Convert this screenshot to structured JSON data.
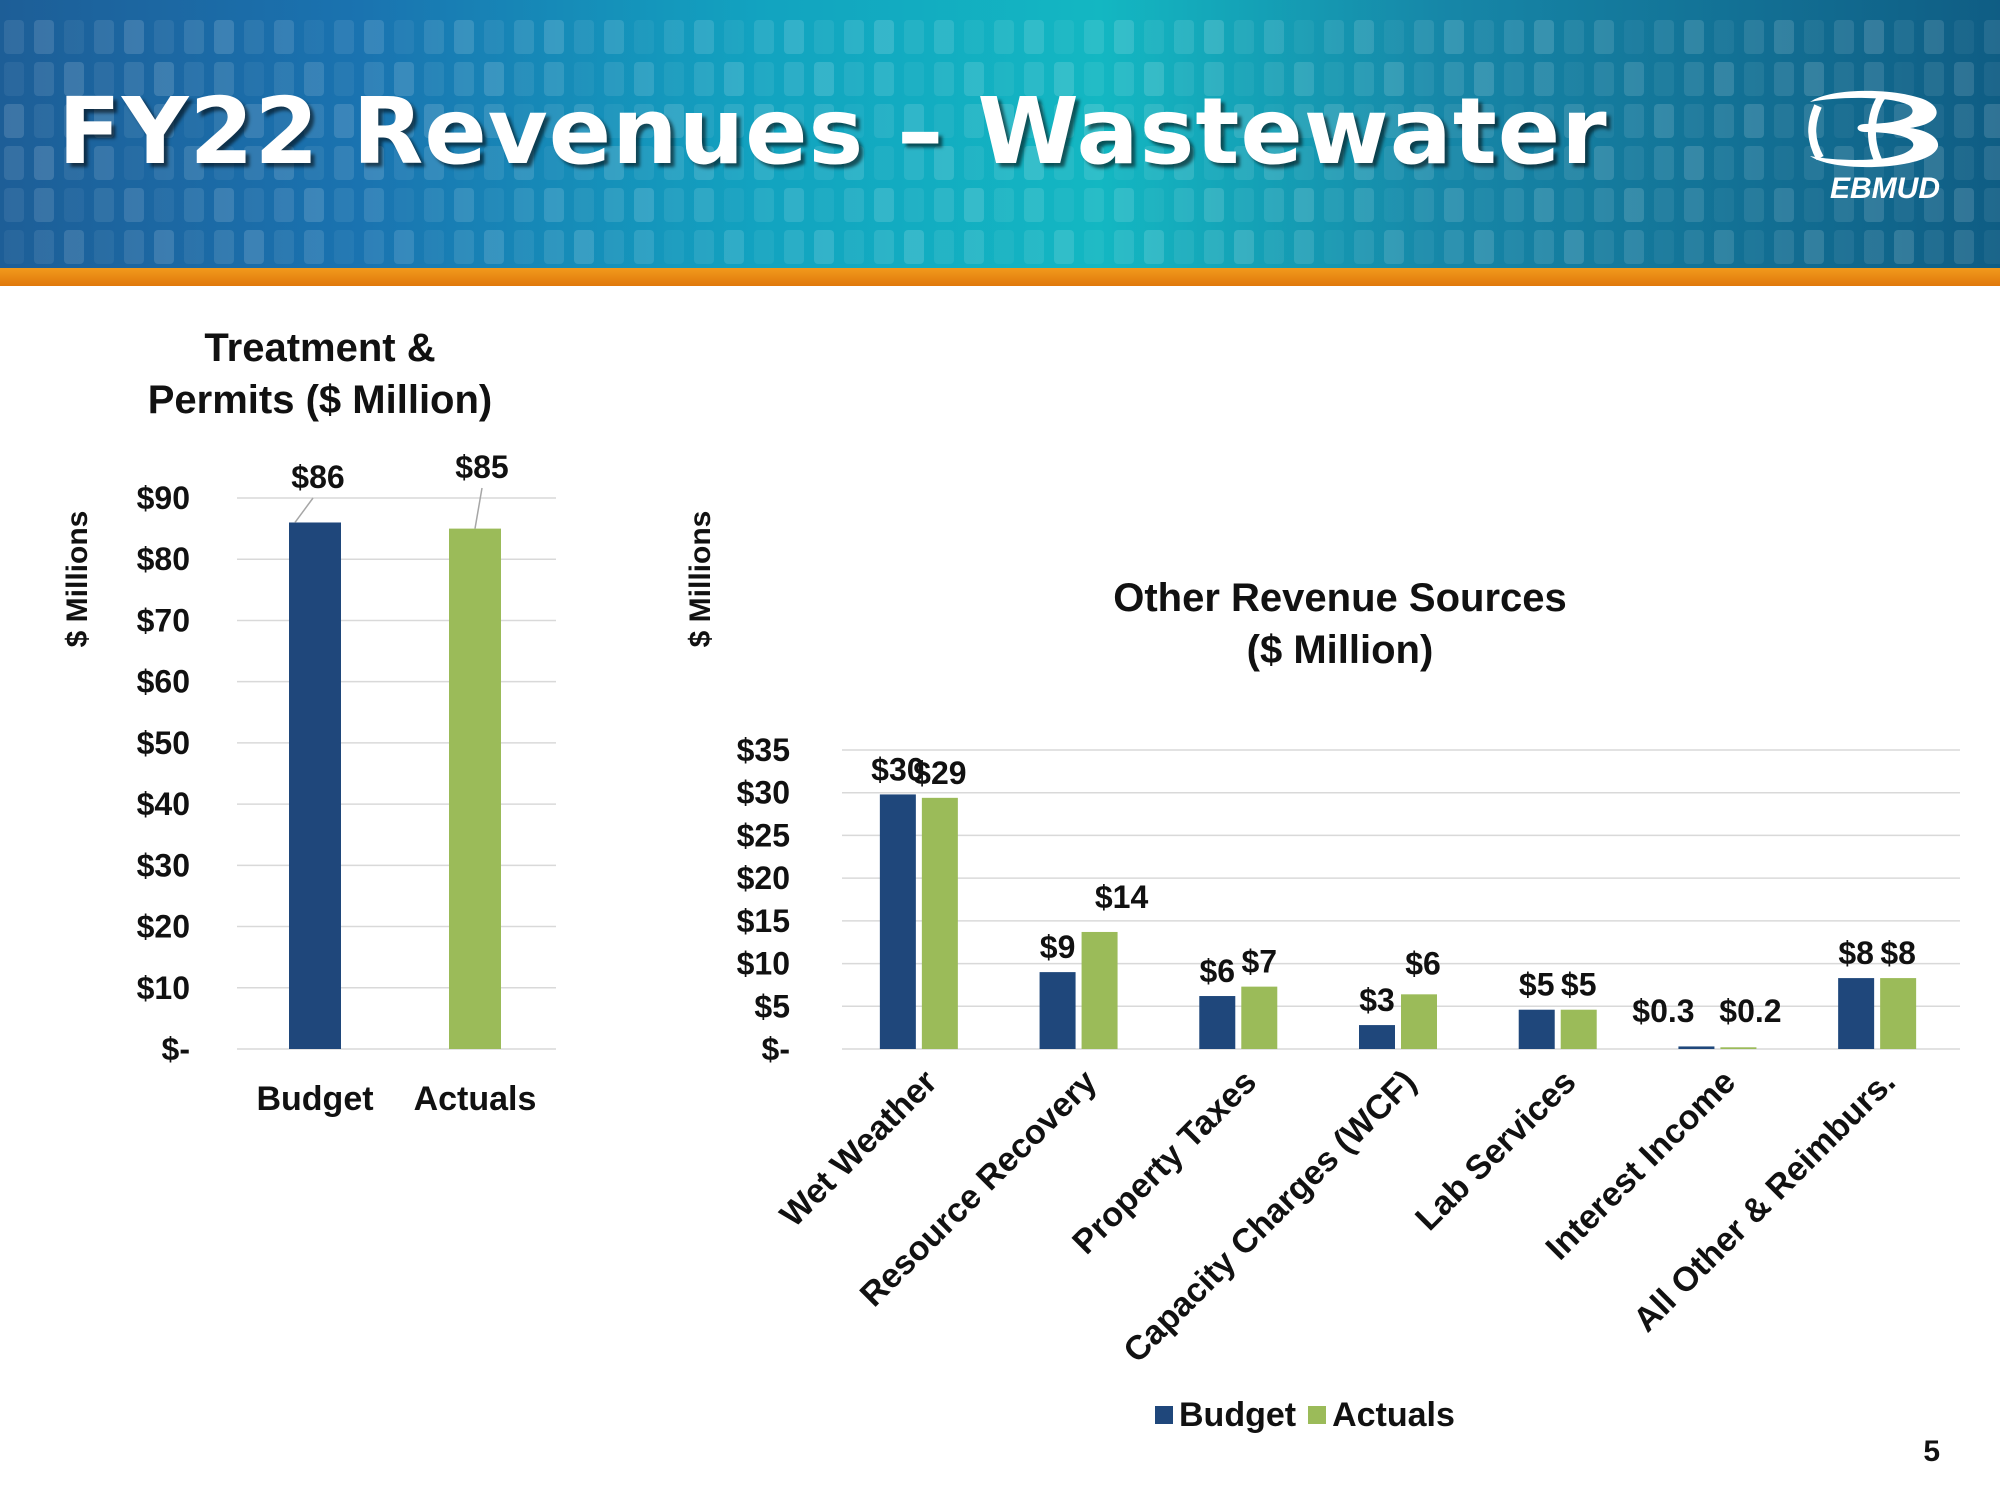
{
  "slide": {
    "title": "FY22 Revenues – Wastewater",
    "logo_text": "EBMUD",
    "page_number": "5"
  },
  "colors": {
    "budget": "#1f477b",
    "actuals": "#9bbb59",
    "banner_orange": "#ee8a14"
  },
  "chart_data": [
    {
      "type": "bar",
      "title": "Treatment & Permits ($ Million)",
      "title_lines": [
        "Treatment &",
        "Permits ($ Million)"
      ],
      "ylabel": "$ Millions",
      "categories": [
        "Budget",
        "Actuals"
      ],
      "values": [
        86,
        85
      ],
      "data_labels": [
        "$86",
        "$85"
      ],
      "ylim": [
        0,
        90
      ],
      "y_ticks": [
        0,
        10,
        20,
        30,
        40,
        50,
        60,
        70,
        80,
        90
      ],
      "y_tick_labels": [
        "$-",
        "$10",
        "$20",
        "$30",
        "$40",
        "$50",
        "$60",
        "$70",
        "$80",
        "$90"
      ],
      "grid": true,
      "legend": "none"
    },
    {
      "type": "bar",
      "title": "Other Revenue Sources ($ Million)",
      "title_lines": [
        "Other Revenue Sources",
        "($ Million)"
      ],
      "ylabel": "$ Millions",
      "categories": [
        "Wet Weather",
        "Resource Recovery",
        "Property Taxes",
        "Capacity Charges (WCF)",
        "Lab Services",
        "Interest Income",
        "All Other & Reimburs."
      ],
      "series": [
        {
          "name": "Budget",
          "values": [
            29.8,
            9.0,
            6.2,
            2.8,
            4.6,
            0.3,
            8.3
          ],
          "data_labels": [
            "$30",
            "$9",
            "$6",
            "$3",
            "$5",
            "$0.3",
            "$8"
          ]
        },
        {
          "name": "Actuals",
          "values": [
            29.4,
            13.7,
            7.3,
            6.4,
            4.6,
            0.2,
            8.3
          ],
          "data_labels": [
            "$29",
            "$14",
            "$7",
            "$6",
            "$5",
            "$0.2",
            "$8"
          ]
        }
      ],
      "ylim": [
        0,
        35
      ],
      "y_ticks": [
        0,
        5,
        10,
        15,
        20,
        25,
        30,
        35
      ],
      "y_tick_labels": [
        "$-",
        "$5",
        "$10",
        "$15",
        "$20",
        "$25",
        "$30",
        "$35"
      ],
      "grid": true,
      "legend": "bottom"
    }
  ]
}
